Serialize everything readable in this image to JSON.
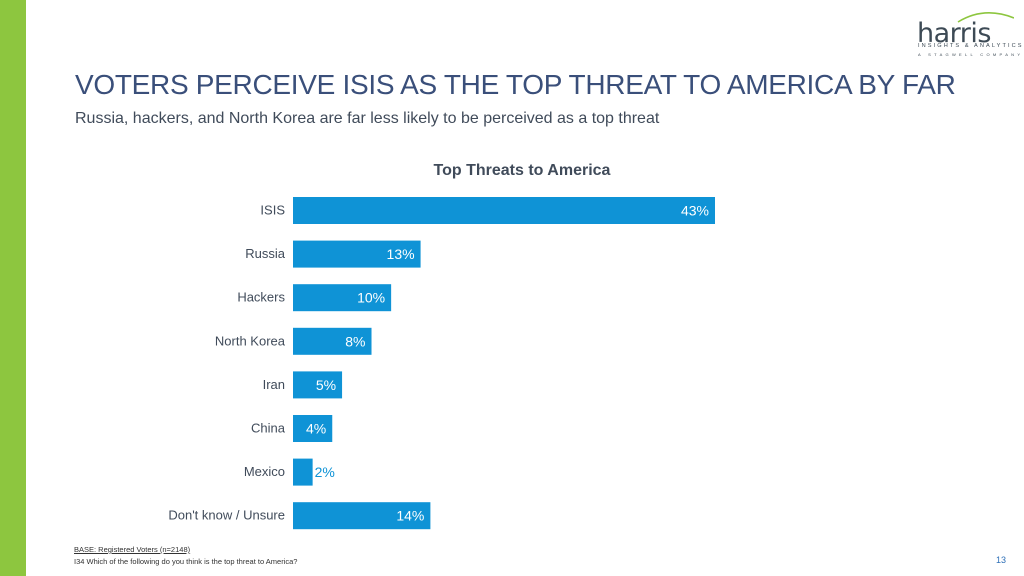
{
  "header": {
    "title": "VOTERS PERCEIVE ISIS AS THE TOP THREAT TO AMERICA BY FAR",
    "subtitle": "Russia, hackers, and North Korea are far less likely to be perceived as a top threat"
  },
  "logo": {
    "wordmark": "harris",
    "line1": "INSIGHTS & ANALYTICS",
    "line2": "A STAGWELL COMPANY"
  },
  "colors": {
    "accent": "#8dc63f",
    "bar": "#0f93d6",
    "title": "#3a4f7a"
  },
  "chart_data": {
    "type": "bar",
    "orientation": "horizontal",
    "title": "Top Threats to America",
    "categories": [
      "ISIS",
      "Russia",
      "Hackers",
      "North Korea",
      "Iran",
      "China",
      "Mexico",
      "Don't know / Unsure"
    ],
    "values": [
      43,
      13,
      10,
      8,
      5,
      4,
      2,
      14
    ],
    "labels": [
      "43%",
      "13%",
      "10%",
      "8%",
      "5%",
      "4%",
      "2%",
      "14%"
    ],
    "xlim": [
      0,
      43
    ],
    "unit": "%",
    "grid": false,
    "legend": "none"
  },
  "footer": {
    "base": "BASE: Registered Voters (n=2148)",
    "question": "I34 Which of the following do you think is the top threat to America?",
    "page_number": "13"
  }
}
